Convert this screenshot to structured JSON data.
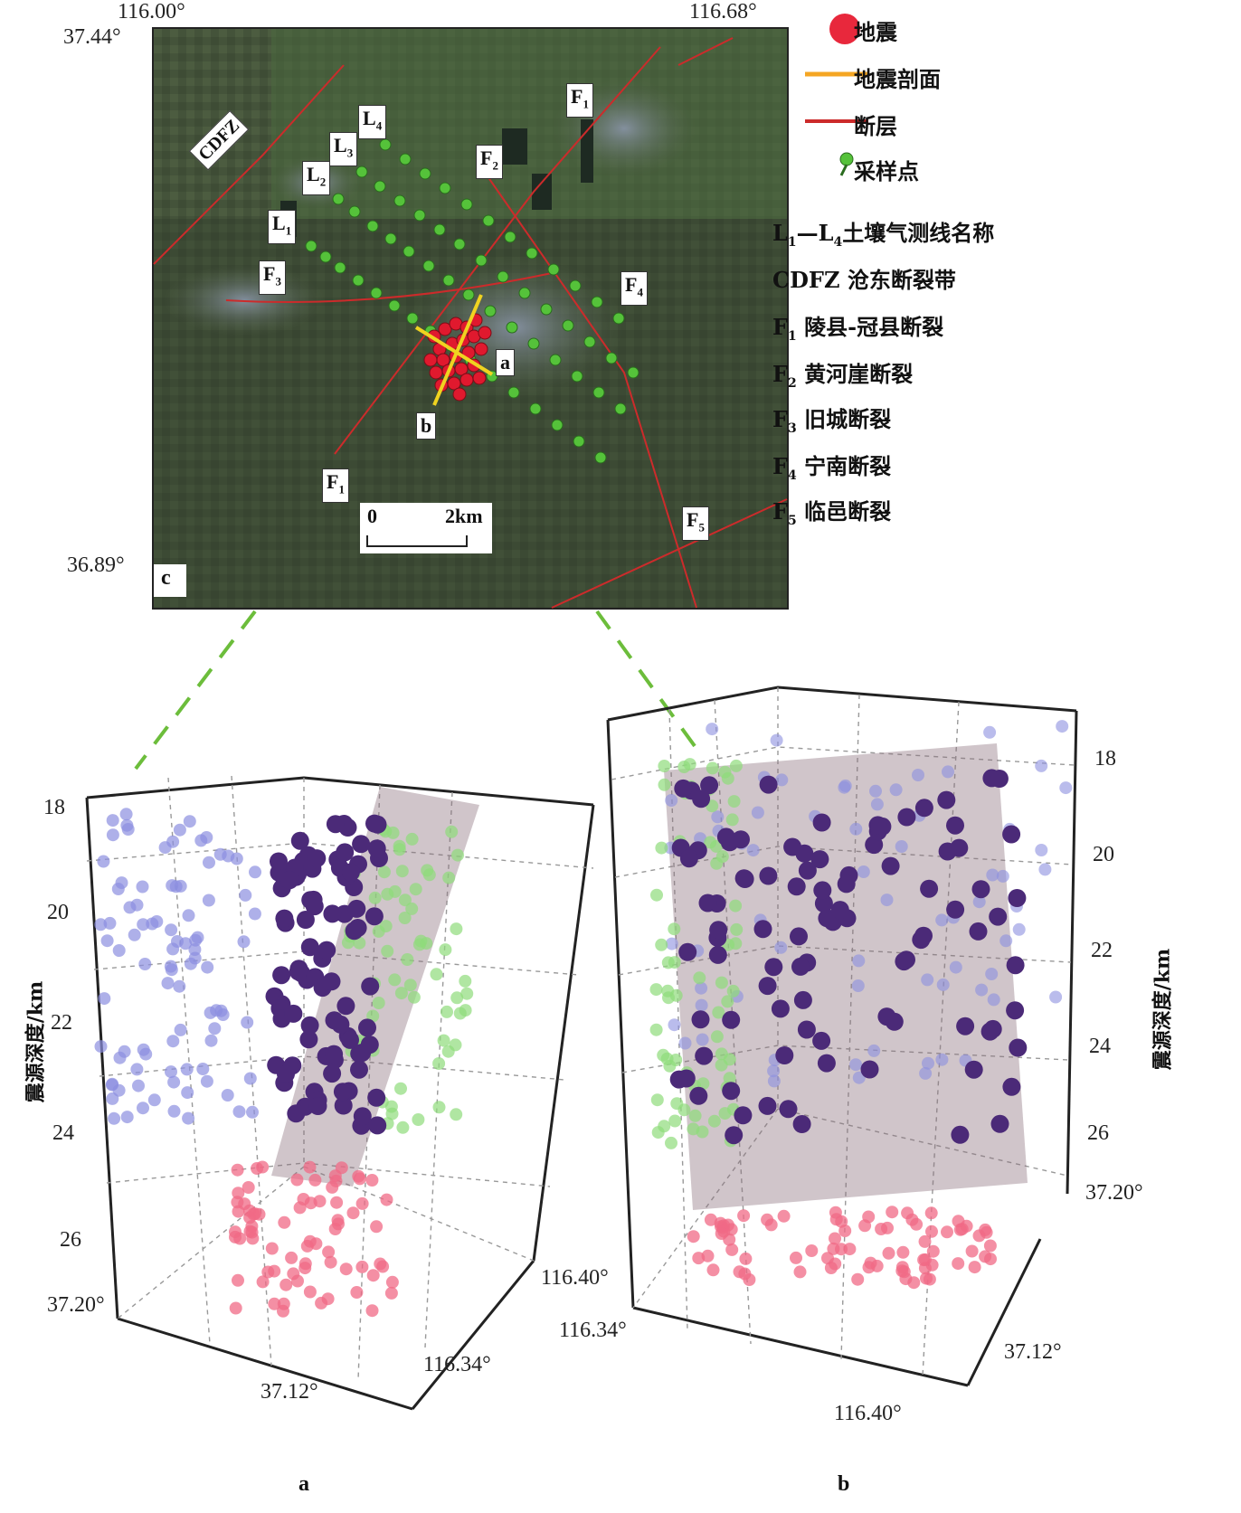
{
  "map": {
    "corner_top_left_lon": "116.00°",
    "corner_top_right_lon": "116.68°",
    "corner_top_lat": "37.44°",
    "corner_bottom_lat": "36.89°",
    "panel_label": "c",
    "labels": {
      "cdfz": "CDFZ",
      "L1": "L",
      "L1_sub": "1",
      "L2": "L",
      "L2_sub": "2",
      "L3": "L",
      "L3_sub": "3",
      "L4": "L",
      "L4_sub": "4",
      "F1a": "F",
      "F1a_sub": "1",
      "F1b": "F",
      "F1b_sub": "1",
      "F2": "F",
      "F2_sub": "2",
      "F3": "F",
      "F3_sub": "3",
      "F4": "F",
      "F4_sub": "4",
      "F5": "F",
      "F5_sub": "5",
      "a": "a",
      "b": "b"
    },
    "scalebar": {
      "zero": "0",
      "end": "2km"
    }
  },
  "legend": {
    "earthquake": "地震",
    "profile": "地震剖面",
    "fault": "断层",
    "sample": "采样点",
    "line_L1": "L",
    "line_L1_sub": "1",
    "line_dash": "—L",
    "line_L4_sub": "4",
    "line_desc": "土壤气测线名称",
    "cdfz": "CDFZ 沧东断裂带",
    "f1_sub": "1",
    "f1": "陵县-冠县断裂",
    "f2_sub": "2",
    "f2": "黄河崖断裂",
    "f3_sub": "3",
    "f3": "旧城断裂",
    "f4_sub": "4",
    "f4": "宁南断裂",
    "f5_sub": "5",
    "f5": "临邑断裂",
    "F": "F"
  },
  "panel_a": {
    "depth_ticks": [
      "18",
      "20",
      "22",
      "24",
      "26"
    ],
    "ylabel": "震源深度/km",
    "lat_ticks": [
      "37.20°",
      "37.12°"
    ],
    "lon_ticks": [
      "116.40°",
      "116.34°"
    ],
    "caption": "a"
  },
  "panel_b": {
    "depth_ticks": [
      "18",
      "20",
      "22",
      "24",
      "26"
    ],
    "ylabel": "震源深度/km",
    "lat_ticks": [
      "37.20°",
      "37.12°"
    ],
    "lon_ticks": [
      "116.34°",
      "116.40°"
    ],
    "caption": "b"
  },
  "colors": {
    "earthquake": "#e8283c",
    "profile": "#f5a623",
    "fault": "#cc2b2b",
    "sample": "#55c23a",
    "blue_proj": "#8c8fe0",
    "green_proj": "#8edc7a",
    "red_proj": "#f06a85",
    "purple": "#4b2a78"
  }
}
